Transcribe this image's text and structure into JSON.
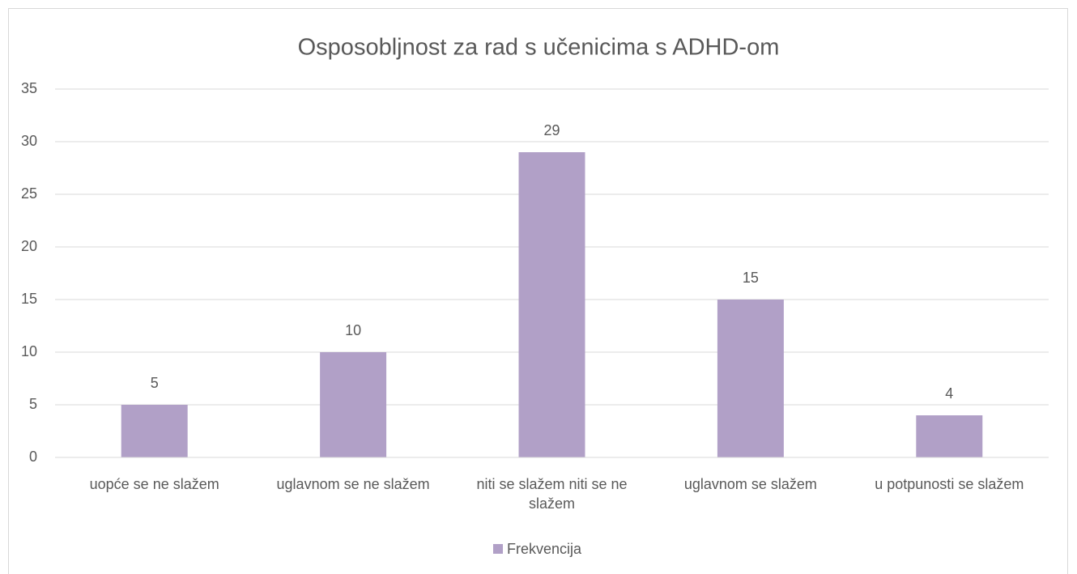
{
  "chart_data": {
    "type": "bar",
    "title": "Osposobljnost za rad s učenicima s ADHD-om",
    "categories": [
      "uopće se ne slažem",
      "uglavnom se ne slažem",
      "niti se slažem niti se ne slažem",
      "uglavnom se slažem",
      "u potpunosti se slažem"
    ],
    "series": [
      {
        "name": "Frekvencija",
        "color": "#b1a0c7",
        "values": [
          5,
          10,
          29,
          15,
          4
        ]
      }
    ],
    "ylim": [
      0,
      35
    ],
    "yticks": [
      0,
      5,
      10,
      15,
      20,
      25,
      30,
      35
    ],
    "grid": true,
    "legend": "bottom"
  }
}
